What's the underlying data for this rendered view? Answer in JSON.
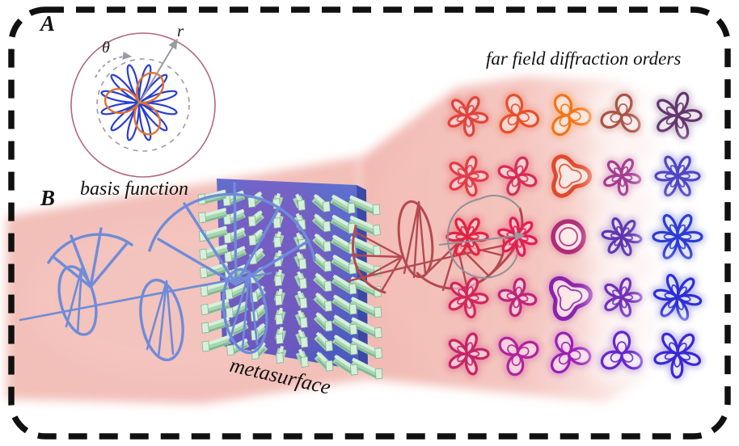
{
  "figure": {
    "panel_a_label": "A",
    "panel_b_label": "B",
    "radial_label": "r",
    "angle_label": "θ",
    "basis_caption": "basis function",
    "metasurface_label": "metasurface",
    "far_field_title": "far field diffraction orders"
  },
  "colors": {
    "border": "#101010",
    "beam_pink": "#f2bcb6",
    "beam_pink_light": "#f6cdc7",
    "slab_blue_top": "#6070cf",
    "slab_blue_bottom": "#4b59c0",
    "slab_side": "#3d49a6",
    "slab_sheen": "#8f54bc",
    "pillar_green": "#a8d5b2",
    "pillar_green_light": "#d8efdc",
    "pillar_green_dark": "#7fb890",
    "incident_helix": "#6e8cd9",
    "output_helix": "#b5494f",
    "spiral_gray": "#90909a",
    "polar_circle": "#b26681",
    "polar_dashed": "#9a9aa2",
    "basis_rose_primary": "#2a3fd0",
    "basis_rose_secondary": "#e0722e"
  },
  "basis_function": {
    "primary_petals": 12,
    "primary_radius": 48,
    "secondary_petals": 3,
    "secondary_radius": 42,
    "secondary_rotation": -55
  },
  "far_field_grid": {
    "rows": 5,
    "cols": 5,
    "cells": [
      [
        {
          "shape": "rose",
          "petals": 5,
          "color": "#e0443c",
          "size": 25,
          "rot": 10
        },
        {
          "shape": "rose",
          "petals": 3,
          "color": "#e6502a",
          "size": 26,
          "rot": 15
        },
        {
          "shape": "rose",
          "petals": 3,
          "color": "#f37414",
          "size": 27,
          "rot": 5
        },
        {
          "shape": "rose",
          "petals": 3,
          "color": "#aa5348",
          "size": 26,
          "rot": 40
        },
        {
          "shape": "rose",
          "petals": 5,
          "color": "#64356f",
          "size": 29,
          "rot": 0
        }
      ],
      [
        {
          "shape": "rose",
          "petals": 5,
          "color": "#e33b49",
          "size": 25,
          "rot": 0
        },
        {
          "shape": "rose",
          "petals": 4,
          "color": "#d62e55",
          "size": 24,
          "rot": 20
        },
        {
          "shape": "triring",
          "petals": 3,
          "color": "#df4a2e",
          "size": 21,
          "rot": 0
        },
        {
          "shape": "rose",
          "petals": 5,
          "color": "#a43c8e",
          "size": 23,
          "rot": 12
        },
        {
          "shape": "rose",
          "petals": 6,
          "color": "#4f46c4",
          "size": 27,
          "rot": 0
        }
      ],
      [
        {
          "shape": "rose",
          "petals": 6,
          "color": "#e22443",
          "size": 25,
          "rot": 0
        },
        {
          "shape": "rose",
          "petals": 6,
          "color": "#e01e52",
          "size": 24,
          "rot": 15
        },
        {
          "shape": "ring",
          "petals": 0,
          "color": "#b12c77",
          "size": 19,
          "rot": 0
        },
        {
          "shape": "rose",
          "petals": 6,
          "color": "#5f35b0",
          "size": 24,
          "rot": 8
        },
        {
          "shape": "rose",
          "petals": 6,
          "color": "#2c3cd4",
          "size": 30,
          "rot": 0
        }
      ],
      [
        {
          "shape": "rose",
          "petals": 5,
          "color": "#d2265c",
          "size": 25,
          "rot": 5
        },
        {
          "shape": "rose",
          "petals": 4,
          "color": "#c1247a",
          "size": 23,
          "rot": 10
        },
        {
          "shape": "triring",
          "petals": 3,
          "color": "#8c22ac",
          "size": 22,
          "rot": 30
        },
        {
          "shape": "rose",
          "petals": 5,
          "color": "#7130b6",
          "size": 24,
          "rot": 0
        },
        {
          "shape": "rose",
          "petals": 6,
          "color": "#2c2fd8",
          "size": 29,
          "rot": 10
        }
      ],
      [
        {
          "shape": "rose",
          "petals": 5,
          "color": "#c62468",
          "size": 26,
          "rot": 0
        },
        {
          "shape": "rose",
          "petals": 3,
          "color": "#b4229e",
          "size": 26,
          "rot": -20
        },
        {
          "shape": "rose",
          "petals": 3,
          "color": "#9c1eb4",
          "size": 27,
          "rot": 10
        },
        {
          "shape": "rose",
          "petals": 3,
          "color": "#6527cc",
          "size": 27,
          "rot": 30
        },
        {
          "shape": "rose",
          "petals": 5,
          "color": "#3a28d6",
          "size": 29,
          "rot": 20
        }
      ]
    ]
  }
}
